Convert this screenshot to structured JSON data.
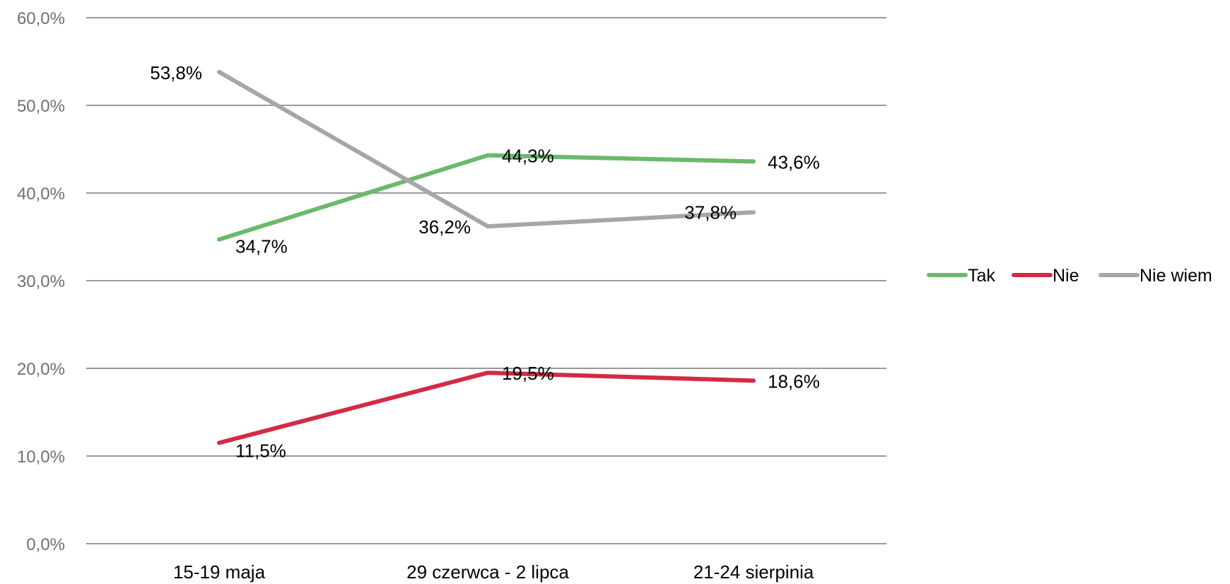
{
  "chart_data": {
    "type": "line",
    "title": "",
    "xlabel": "",
    "ylabel": "",
    "categories": [
      "15-19 maja",
      "29 czerwca - 2 lipca",
      "21-24 sierpinia"
    ],
    "ylim": [
      0,
      60
    ],
    "yticks": [
      0,
      10,
      20,
      30,
      40,
      50,
      60
    ],
    "ytick_labels": [
      "0,0%",
      "10,0%",
      "20,0%",
      "30,0%",
      "40,0%",
      "50,0%",
      "60,0%"
    ],
    "grid": true,
    "legend_position": "right",
    "series": [
      {
        "name": "Tak",
        "color": "#6cb86c",
        "values": [
          34.7,
          44.3,
          43.6
        ],
        "labels": [
          "34,7%",
          "44,3%",
          "43,6%"
        ]
      },
      {
        "name": "Nie",
        "color": "#d42a46",
        "values": [
          11.5,
          19.5,
          18.6
        ],
        "labels": [
          "11,5%",
          "19,5%",
          "18,6%"
        ]
      },
      {
        "name": "Nie  wiem",
        "color": "#a6a6a6",
        "values": [
          53.8,
          36.2,
          37.8
        ],
        "labels": [
          "53,8%",
          "36,2%",
          "37,8%"
        ]
      }
    ]
  }
}
